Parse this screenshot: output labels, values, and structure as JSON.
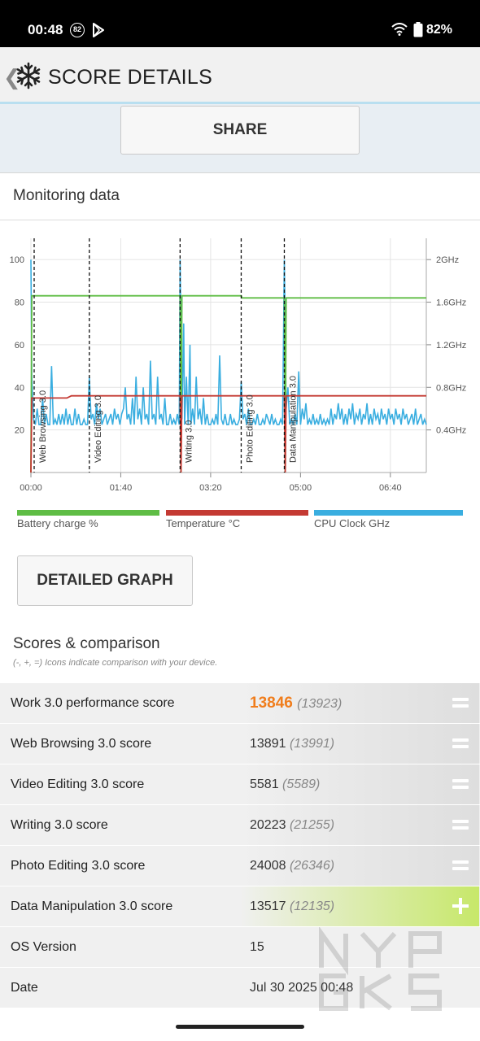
{
  "status_bar": {
    "time": "00:48",
    "notification_badge": "82",
    "battery_percent": "82%",
    "icons": [
      "play-store-icon",
      "wifi-icon",
      "battery-icon"
    ]
  },
  "header": {
    "title": "SCORE DETAILS",
    "icons": [
      "back-chevron-icon",
      "snowflake-logo-icon"
    ]
  },
  "share_label": "SHARE",
  "monitoring": {
    "title": "Monitoring data"
  },
  "chart_data": {
    "type": "line",
    "title": "",
    "x_ticks": [
      "00:00",
      "01:40",
      "03:20",
      "05:00",
      "06:40"
    ],
    "x_range_seconds": [
      0,
      440
    ],
    "y_left_ticks": [
      "20",
      "40",
      "60",
      "80",
      "100"
    ],
    "y_left_range": [
      0,
      110
    ],
    "y_right_ticks": [
      "0.4GHz",
      "0.8GHz",
      "1.2GHz",
      "1.6GHz",
      "2GHz"
    ],
    "y_right_range_ghz": [
      0,
      2.2
    ],
    "grid": true,
    "legend_placement": "bottom",
    "sections": [
      {
        "label": "Web Browsing 3.0",
        "t": 0
      },
      {
        "label": "Video Editing 3.0",
        "t": 65
      },
      {
        "label": "Writing 3.0",
        "t": 166
      },
      {
        "label": "Photo Editing 3.0",
        "t": 234
      },
      {
        "label": "Data Manipulation 3.0",
        "t": 282
      }
    ],
    "series": [
      {
        "name": "Battery charge %",
        "color": "#5fbd45",
        "points": [
          [
            0,
            0
          ],
          [
            1,
            83
          ],
          [
            166,
            83
          ],
          [
            167,
            0
          ],
          [
            168,
            83
          ],
          [
            234,
            83
          ],
          [
            235,
            82
          ],
          [
            282,
            82
          ],
          [
            283,
            0
          ],
          [
            284,
            82
          ],
          [
            440,
            82
          ]
        ]
      },
      {
        "name": "Temperature °C",
        "color": "#c43a33",
        "points": [
          [
            0,
            0
          ],
          [
            1,
            35
          ],
          [
            40,
            35
          ],
          [
            45,
            36
          ],
          [
            166,
            36
          ],
          [
            167,
            0
          ],
          [
            168,
            36
          ],
          [
            234,
            36
          ],
          [
            282,
            36
          ],
          [
            283,
            0
          ],
          [
            284,
            36
          ],
          [
            440,
            36
          ]
        ]
      },
      {
        "name": "CPU Clock GHz",
        "color": "#3aaee0",
        "points_ghz": [
          [
            0,
            2.0
          ],
          [
            1,
            0.9
          ],
          [
            3,
            0.5
          ],
          [
            5,
            0.45
          ],
          [
            7,
            0.6
          ],
          [
            9,
            0.45
          ],
          [
            11,
            0.45
          ],
          [
            13,
            0.7
          ],
          [
            15,
            0.45
          ],
          [
            17,
            0.55
          ],
          [
            19,
            0.45
          ],
          [
            21,
            0.45
          ],
          [
            23,
            1.0
          ],
          [
            25,
            0.45
          ],
          [
            27,
            0.5
          ],
          [
            29,
            0.45
          ],
          [
            31,
            0.55
          ],
          [
            33,
            0.45
          ],
          [
            35,
            0.55
          ],
          [
            37,
            0.45
          ],
          [
            39,
            0.6
          ],
          [
            41,
            0.45
          ],
          [
            43,
            0.55
          ],
          [
            45,
            0.45
          ],
          [
            47,
            0.45
          ],
          [
            49,
            0.6
          ],
          [
            51,
            0.45
          ],
          [
            53,
            0.55
          ],
          [
            55,
            0.45
          ],
          [
            57,
            0.45
          ],
          [
            59,
            0.5
          ],
          [
            61,
            0.45
          ],
          [
            63,
            0.45
          ],
          [
            65,
            0.9
          ],
          [
            67,
            0.5
          ],
          [
            69,
            0.55
          ],
          [
            71,
            0.45
          ],
          [
            73,
            0.65
          ],
          [
            75,
            0.5
          ],
          [
            77,
            0.6
          ],
          [
            79,
            0.45
          ],
          [
            81,
            0.5
          ],
          [
            83,
            0.55
          ],
          [
            85,
            0.45
          ],
          [
            87,
            0.5
          ],
          [
            89,
            0.55
          ],
          [
            91,
            0.45
          ],
          [
            93,
            0.6
          ],
          [
            95,
            0.5
          ],
          [
            97,
            0.55
          ],
          [
            99,
            0.45
          ],
          [
            101,
            0.55
          ],
          [
            103,
            0.6
          ],
          [
            105,
            0.8
          ],
          [
            107,
            0.5
          ],
          [
            109,
            0.55
          ],
          [
            111,
            0.45
          ],
          [
            113,
            0.7
          ],
          [
            115,
            0.45
          ],
          [
            117,
            0.9
          ],
          [
            119,
            0.5
          ],
          [
            121,
            0.6
          ],
          [
            123,
            0.45
          ],
          [
            125,
            0.8
          ],
          [
            127,
            0.5
          ],
          [
            129,
            0.55
          ],
          [
            131,
            0.45
          ],
          [
            133,
            1.05
          ],
          [
            135,
            0.5
          ],
          [
            137,
            0.55
          ],
          [
            139,
            0.45
          ],
          [
            141,
            0.9
          ],
          [
            143,
            0.5
          ],
          [
            145,
            0.55
          ],
          [
            147,
            0.45
          ],
          [
            149,
            0.7
          ],
          [
            151,
            0.45
          ],
          [
            153,
            0.45
          ],
          [
            155,
            0.55
          ],
          [
            157,
            0.45
          ],
          [
            159,
            0.5
          ],
          [
            161,
            0.45
          ],
          [
            163,
            0.55
          ],
          [
            165,
            0.45
          ],
          [
            166,
            2.0
          ],
          [
            168,
            0.5
          ],
          [
            170,
            1.4
          ],
          [
            171,
            0.45
          ],
          [
            173,
            0.9
          ],
          [
            175,
            0.45
          ],
          [
            177,
            1.2
          ],
          [
            178,
            0.45
          ],
          [
            180,
            0.6
          ],
          [
            182,
            0.45
          ],
          [
            184,
            0.9
          ],
          [
            186,
            0.5
          ],
          [
            188,
            0.6
          ],
          [
            190,
            0.45
          ],
          [
            192,
            0.7
          ],
          [
            194,
            0.45
          ],
          [
            196,
            0.55
          ],
          [
            198,
            0.45
          ],
          [
            200,
            0.45
          ],
          [
            202,
            0.5
          ],
          [
            204,
            0.45
          ],
          [
            206,
            0.55
          ],
          [
            208,
            0.45
          ],
          [
            210,
            1.1
          ],
          [
            212,
            0.5
          ],
          [
            214,
            0.45
          ],
          [
            216,
            0.55
          ],
          [
            218,
            0.45
          ],
          [
            220,
            0.45
          ],
          [
            222,
            0.55
          ],
          [
            224,
            0.45
          ],
          [
            226,
            0.5
          ],
          [
            228,
            0.45
          ],
          [
            230,
            0.45
          ],
          [
            232,
            0.5
          ],
          [
            234,
            0.85
          ],
          [
            236,
            0.5
          ],
          [
            238,
            0.55
          ],
          [
            240,
            0.45
          ],
          [
            242,
            0.6
          ],
          [
            244,
            0.45
          ],
          [
            246,
            0.45
          ],
          [
            248,
            0.5
          ],
          [
            250,
            0.45
          ],
          [
            252,
            0.55
          ],
          [
            254,
            0.45
          ],
          [
            256,
            0.45
          ],
          [
            258,
            0.5
          ],
          [
            260,
            0.45
          ],
          [
            262,
            0.55
          ],
          [
            264,
            0.5
          ],
          [
            266,
            0.45
          ],
          [
            268,
            0.55
          ],
          [
            270,
            0.45
          ],
          [
            272,
            0.5
          ],
          [
            274,
            0.45
          ],
          [
            276,
            0.45
          ],
          [
            278,
            0.5
          ],
          [
            280,
            0.45
          ],
          [
            282,
            2.0
          ],
          [
            284,
            0.6
          ],
          [
            286,
            0.8
          ],
          [
            288,
            0.45
          ],
          [
            290,
            0.5
          ],
          [
            292,
            0.45
          ],
          [
            294,
            0.55
          ],
          [
            296,
            0.45
          ],
          [
            298,
            0.95
          ],
          [
            300,
            0.45
          ],
          [
            302,
            0.6
          ],
          [
            304,
            0.5
          ],
          [
            306,
            0.65
          ],
          [
            308,
            0.45
          ],
          [
            310,
            0.5
          ],
          [
            312,
            0.45
          ],
          [
            314,
            0.55
          ],
          [
            316,
            0.45
          ],
          [
            318,
            0.5
          ],
          [
            320,
            0.45
          ],
          [
            322,
            0.55
          ],
          [
            324,
            0.45
          ],
          [
            326,
            0.5
          ],
          [
            328,
            0.45
          ],
          [
            330,
            0.5
          ],
          [
            332,
            0.45
          ],
          [
            334,
            0.6
          ],
          [
            336,
            0.45
          ],
          [
            338,
            0.55
          ],
          [
            340,
            0.5
          ],
          [
            342,
            0.65
          ],
          [
            344,
            0.5
          ],
          [
            346,
            0.6
          ],
          [
            348,
            0.45
          ],
          [
            350,
            0.55
          ],
          [
            352,
            0.45
          ],
          [
            354,
            0.6
          ],
          [
            356,
            0.5
          ],
          [
            358,
            0.65
          ],
          [
            360,
            0.45
          ],
          [
            362,
            0.55
          ],
          [
            364,
            0.5
          ],
          [
            366,
            0.6
          ],
          [
            368,
            0.45
          ],
          [
            370,
            0.55
          ],
          [
            372,
            0.5
          ],
          [
            374,
            0.65
          ],
          [
            376,
            0.45
          ],
          [
            378,
            0.55
          ],
          [
            380,
            0.45
          ],
          [
            382,
            0.6
          ],
          [
            384,
            0.5
          ],
          [
            386,
            0.55
          ],
          [
            388,
            0.45
          ],
          [
            390,
            0.6
          ],
          [
            392,
            0.5
          ],
          [
            394,
            0.55
          ],
          [
            396,
            0.45
          ],
          [
            398,
            0.6
          ],
          [
            400,
            0.5
          ],
          [
            402,
            0.55
          ],
          [
            404,
            0.45
          ],
          [
            406,
            0.6
          ],
          [
            408,
            0.5
          ],
          [
            410,
            0.55
          ],
          [
            412,
            0.45
          ],
          [
            414,
            0.6
          ],
          [
            416,
            0.5
          ],
          [
            418,
            0.55
          ],
          [
            420,
            0.45
          ],
          [
            422,
            0.5
          ],
          [
            424,
            0.55
          ],
          [
            426,
            0.45
          ],
          [
            428,
            0.6
          ],
          [
            430,
            0.45
          ],
          [
            432,
            0.5
          ],
          [
            434,
            0.55
          ],
          [
            436,
            0.45
          ],
          [
            438,
            0.5
          ],
          [
            440,
            0.45
          ]
        ]
      }
    ]
  },
  "legend": {
    "battery": {
      "label": "Battery charge %",
      "color": "#5fbd45"
    },
    "temperature": {
      "label": "Temperature °C",
      "color": "#c43a33"
    },
    "cpu": {
      "label": "CPU Clock GHz",
      "color": "#3aaee0"
    }
  },
  "detailed_graph_label": "DETAILED GRAPH",
  "scores": {
    "title": "Scores & comparison",
    "hint": "(-, +, =) Icons indicate comparison with your device.",
    "rows": [
      {
        "label": "Work 3.0 performance score",
        "value": "13846",
        "compare": "(13923)",
        "icon": "equal-icon",
        "highlight": true
      },
      {
        "label": "Web Browsing 3.0 score",
        "value": "13891",
        "compare": "(13991)",
        "icon": "equal-icon"
      },
      {
        "label": "Video Editing 3.0 score",
        "value": "5581",
        "compare": "(5589)",
        "icon": "equal-icon"
      },
      {
        "label": "Writing 3.0 score",
        "value": "20223",
        "compare": "(21255)",
        "icon": "equal-icon"
      },
      {
        "label": "Photo Editing 3.0 score",
        "value": "24008",
        "compare": "(26346)",
        "icon": "equal-icon"
      },
      {
        "label": "Data Manipulation 3.0 score",
        "value": "13517",
        "compare": "(12135)",
        "icon": "plus-icon"
      },
      {
        "label": "OS Version",
        "value": "15",
        "compare": "",
        "icon": ""
      },
      {
        "label": "Date",
        "value": "Jul 30 2025 00:48",
        "compare": "",
        "icon": ""
      }
    ]
  }
}
